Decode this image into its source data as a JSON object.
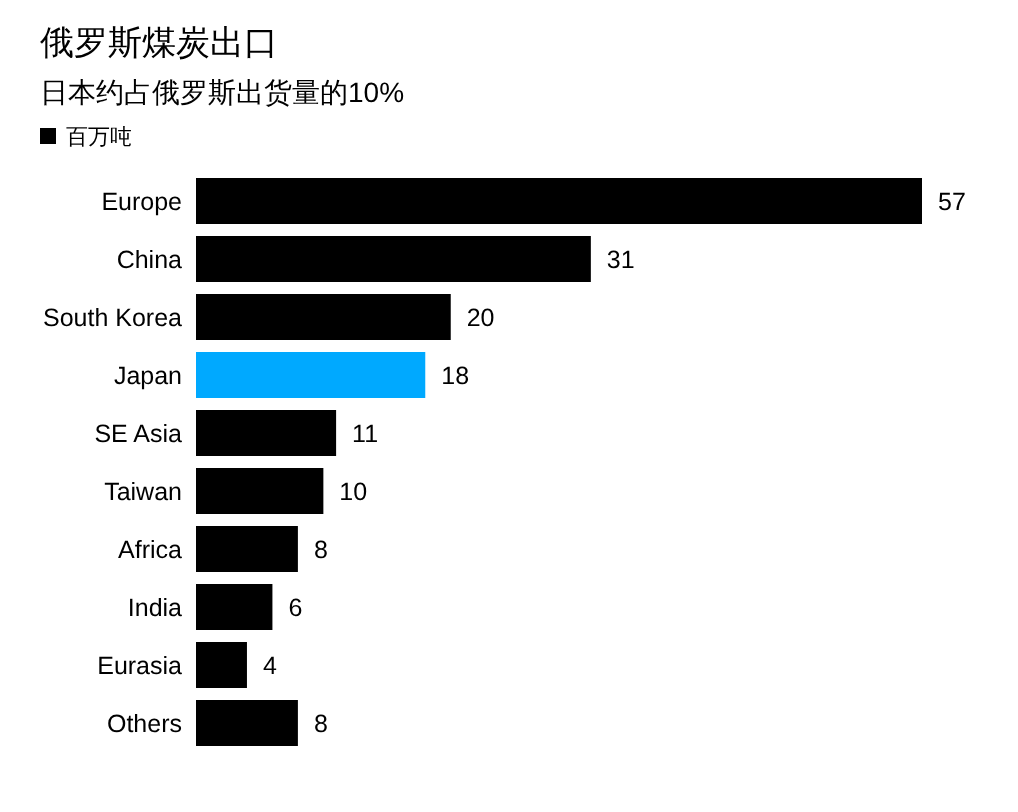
{
  "chart_data": {
    "type": "bar",
    "orientation": "horizontal",
    "title": "俄罗斯煤炭出口",
    "subtitle": "日本约占俄罗斯出货量的10%",
    "categories": [
      "Europe",
      "China",
      "South Korea",
      "Japan",
      "SE Asia",
      "Taiwan",
      "Africa",
      "India",
      "Eurasia",
      "Others"
    ],
    "series": [
      {
        "name": "百万吨",
        "color": "#000000",
        "colors": [
          "#000000",
          "#000000",
          "#000000",
          "#00a9ff",
          "#000000",
          "#000000",
          "#000000",
          "#000000",
          "#000000",
          "#000000"
        ],
        "values": [
          57,
          31,
          20,
          18,
          11,
          10,
          8,
          6,
          4,
          8
        ]
      }
    ],
    "data_labels": true,
    "legend": "top left"
  }
}
